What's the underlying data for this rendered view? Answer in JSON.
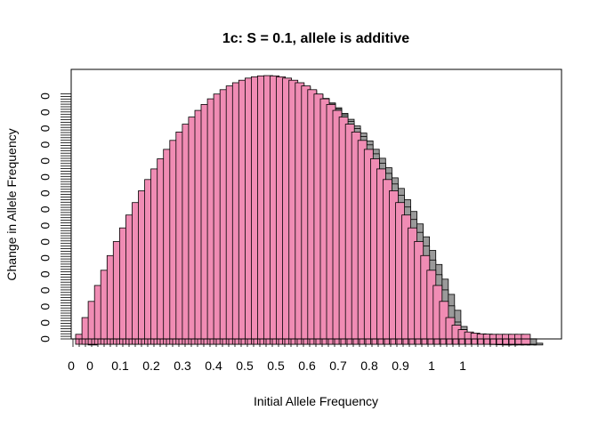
{
  "chart_data": {
    "type": "bar",
    "title": "1c: S = 0.1, allele is additive",
    "xlabel": "Initial Allele Frequency",
    "ylabel": "Change in Allele Frequency",
    "x_tick_labels": [
      "0",
      "0",
      "0.1",
      "0.2",
      "0.3",
      "0.4",
      "0.5",
      "0.5",
      "0.6",
      "0.7",
      "0.8",
      "0.9",
      "1",
      "1"
    ],
    "y_tick_labels": [
      "0",
      "0",
      "0",
      "0",
      "0",
      "0",
      "0",
      "0",
      "0",
      "0",
      "0",
      "0",
      "0",
      "0",
      "0",
      "0"
    ],
    "series": [
      {
        "x": [
          0,
          0.0141,
          0.0281,
          0.0422,
          0.0563,
          0.0704,
          0.0844,
          0.0985,
          0.1126,
          0.1267,
          0.1407,
          0.1548,
          0.1689,
          0.183,
          0.197,
          0.2111,
          0.2252,
          0.2393,
          0.2533,
          0.2674,
          0.2815,
          0.2956,
          0.3096,
          0.3237,
          0.3378,
          0.3519,
          0.3659,
          0.38,
          0.3941,
          0.4081,
          0.4222,
          0.4363,
          0.4504,
          0.4644,
          0.4785,
          0.4926,
          0.5067,
          0.5207,
          0.5348,
          0.5489,
          0.563,
          0.577,
          0.5911,
          0.6052,
          0.6193,
          0.6333,
          0.6474,
          0.6615,
          0.6756,
          0.6896,
          0.7037,
          0.7178,
          0.7319,
          0.7459,
          0.76,
          0.7741,
          0.7881,
          0.8022,
          0.8163,
          0.8304,
          0.8444,
          0.8585,
          0.8726,
          0.8867,
          0.9007,
          0.9148,
          0.9289,
          0.943,
          0.957,
          0.9711,
          0.9852,
          1
        ],
        "y": [
          0,
          0.000728,
          0.00143,
          0.00212,
          0.00278,
          0.00342,
          0.00403,
          0.00462,
          0.00518,
          0.00572,
          0.00623,
          0.00672,
          0.00718,
          0.00762,
          0.00803,
          0.00842,
          0.00878,
          0.00912,
          0.00943,
          0.00972,
          0.00998,
          0.01022,
          0.01043,
          0.01062,
          0.01078,
          0.01092,
          0.01103,
          0.01112,
          0.01118,
          0.01122,
          0.01123,
          0.01122,
          0.01118,
          0.01112,
          0.01103,
          0.01092,
          0.01078,
          0.01062,
          0.01043,
          0.01022,
          0.00998,
          0.00972,
          0.00943,
          0.00912,
          0.00878,
          0.00842,
          0.00803,
          0.00762,
          0.00718,
          0.00672,
          0.00623,
          0.00572,
          0.00518,
          0.00462,
          0.00403,
          0.00342,
          0.00278,
          0.00212,
          0.00143,
          0.000728,
          0.0004,
          0.0002,
          0.0001,
          5e-05,
          2e-05,
          1e-05,
          0,
          0,
          0,
          0,
          0,
          0
        ]
      }
    ],
    "colors": {
      "fill": "#f08cb4",
      "fill_alt": "#9a9a9a",
      "stroke": "#000000",
      "frame": "#000000",
      "background": "#ffffff"
    },
    "grid": false,
    "legend": "none"
  }
}
